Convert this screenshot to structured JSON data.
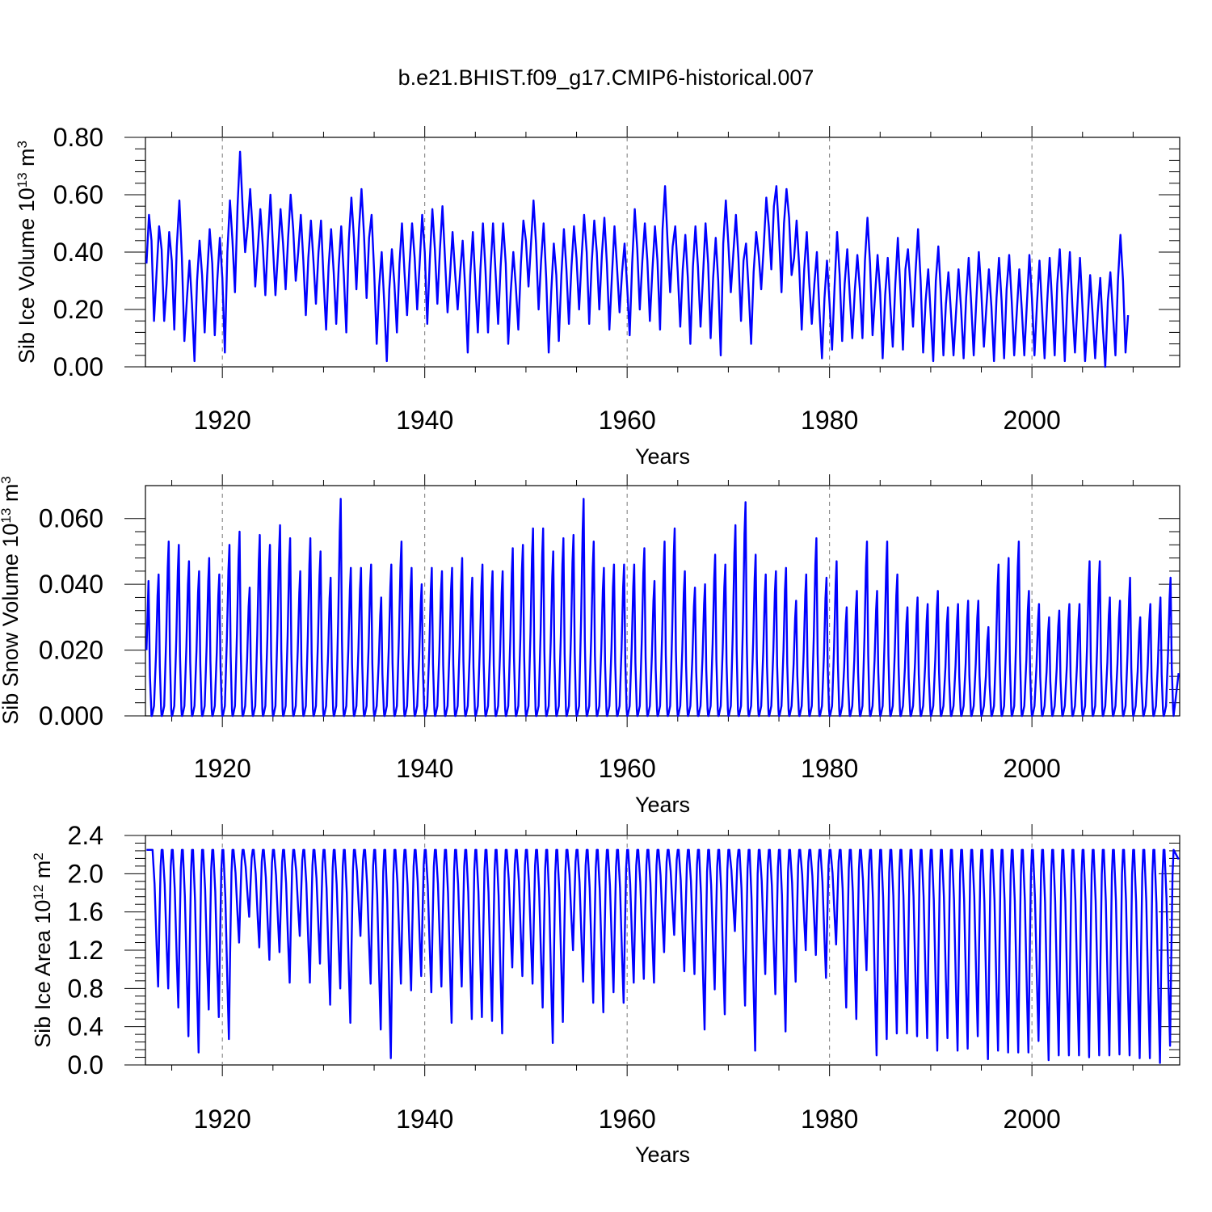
{
  "figure_title": "b.e21.BHIST.f09_g17.CMIP6-historical.007",
  "chart_data": [
    {
      "type": "line",
      "title": "",
      "xlabel": "Years",
      "ylabel": {
        "base": "Sib Ice Volume 10",
        "exp": "13",
        "unit": " m",
        "unit_exp": "3"
      },
      "xlim": [
        1912.4,
        2014.6
      ],
      "ylim": [
        0,
        0.8
      ],
      "x_ticks": [
        1920,
        1940,
        1960,
        1980,
        2000
      ],
      "x_tick_labels": [
        "1920",
        "1940",
        "1960",
        "1980",
        "2000"
      ],
      "y_ticks": [
        0,
        0.2,
        0.4,
        0.6,
        0.8
      ],
      "y_tick_labels": [
        "0.00",
        "0.20",
        "0.40",
        "0.60",
        "0.80"
      ],
      "grid": "vertical dashed at major x ticks",
      "series": [
        {
          "color": "#0000ff",
          "start_year": 1912.5,
          "step_years": 0.25,
          "values": [
            0.36,
            0.53,
            0.44,
            0.16,
            0.33,
            0.49,
            0.41,
            0.16,
            0.29,
            0.47,
            0.37,
            0.13,
            0.42,
            0.58,
            0.38,
            0.09,
            0.24,
            0.37,
            0.22,
            0.02,
            0.3,
            0.44,
            0.32,
            0.12,
            0.32,
            0.48,
            0.36,
            0.11,
            0.3,
            0.45,
            0.31,
            0.05,
            0.4,
            0.58,
            0.44,
            0.26,
            0.56,
            0.75,
            0.56,
            0.4,
            0.49,
            0.62,
            0.47,
            0.28,
            0.41,
            0.55,
            0.42,
            0.25,
            0.44,
            0.6,
            0.42,
            0.25,
            0.4,
            0.55,
            0.43,
            0.27,
            0.45,
            0.6,
            0.48,
            0.3,
            0.4,
            0.53,
            0.37,
            0.18,
            0.38,
            0.51,
            0.37,
            0.22,
            0.4,
            0.51,
            0.31,
            0.13,
            0.35,
            0.48,
            0.33,
            0.15,
            0.35,
            0.49,
            0.32,
            0.12,
            0.44,
            0.59,
            0.45,
            0.27,
            0.48,
            0.62,
            0.46,
            0.24,
            0.45,
            0.53,
            0.33,
            0.08,
            0.28,
            0.4,
            0.22,
            0.02,
            0.27,
            0.41,
            0.29,
            0.12,
            0.36,
            0.5,
            0.33,
            0.18,
            0.36,
            0.5,
            0.38,
            0.2,
            0.36,
            0.53,
            0.4,
            0.15,
            0.37,
            0.55,
            0.41,
            0.22,
            0.41,
            0.56,
            0.38,
            0.19,
            0.32,
            0.47,
            0.33,
            0.2,
            0.33,
            0.44,
            0.27,
            0.05,
            0.32,
            0.47,
            0.29,
            0.12,
            0.34,
            0.5,
            0.34,
            0.12,
            0.34,
            0.5,
            0.33,
            0.15,
            0.35,
            0.5,
            0.36,
            0.08,
            0.26,
            0.4,
            0.28,
            0.13,
            0.36,
            0.51,
            0.44,
            0.28,
            0.43,
            0.58,
            0.43,
            0.2,
            0.37,
            0.5,
            0.31,
            0.05,
            0.26,
            0.43,
            0.32,
            0.09,
            0.32,
            0.48,
            0.34,
            0.15,
            0.35,
            0.49,
            0.38,
            0.2,
            0.38,
            0.53,
            0.4,
            0.15,
            0.36,
            0.51,
            0.4,
            0.2,
            0.39,
            0.52,
            0.36,
            0.13,
            0.32,
            0.49,
            0.35,
            0.19,
            0.33,
            0.43,
            0.28,
            0.11,
            0.36,
            0.55,
            0.41,
            0.2,
            0.37,
            0.5,
            0.37,
            0.16,
            0.34,
            0.49,
            0.37,
            0.13,
            0.48,
            0.63,
            0.43,
            0.26,
            0.42,
            0.49,
            0.33,
            0.14,
            0.34,
            0.46,
            0.31,
            0.08,
            0.35,
            0.49,
            0.35,
            0.14,
            0.32,
            0.5,
            0.36,
            0.1,
            0.31,
            0.45,
            0.3,
            0.04,
            0.43,
            0.58,
            0.43,
            0.26,
            0.4,
            0.53,
            0.38,
            0.16,
            0.37,
            0.43,
            0.27,
            0.08,
            0.33,
            0.47,
            0.39,
            0.27,
            0.42,
            0.59,
            0.49,
            0.34,
            0.56,
            0.63,
            0.47,
            0.26,
            0.5,
            0.62,
            0.52,
            0.32,
            0.38,
            0.51,
            0.35,
            0.13,
            0.34,
            0.47,
            0.29,
            0.15,
            0.29,
            0.4,
            0.2,
            0.03,
            0.24,
            0.37,
            0.22,
            0.06,
            0.28,
            0.47,
            0.32,
            0.09,
            0.29,
            0.41,
            0.25,
            0.1,
            0.27,
            0.39,
            0.27,
            0.1,
            0.37,
            0.52,
            0.36,
            0.11,
            0.25,
            0.39,
            0.26,
            0.03,
            0.25,
            0.38,
            0.22,
            0.07,
            0.29,
            0.45,
            0.27,
            0.06,
            0.34,
            0.41,
            0.28,
            0.14,
            0.33,
            0.48,
            0.3,
            0.05,
            0.23,
            0.34,
            0.18,
            0.02,
            0.3,
            0.42,
            0.26,
            0.04,
            0.22,
            0.33,
            0.19,
            0.04,
            0.19,
            0.34,
            0.2,
            0.03,
            0.24,
            0.38,
            0.22,
            0.04,
            0.23,
            0.4,
            0.26,
            0.07,
            0.21,
            0.34,
            0.21,
            0.02,
            0.24,
            0.38,
            0.23,
            0.03,
            0.27,
            0.39,
            0.23,
            0.04,
            0.19,
            0.34,
            0.2,
            0.04,
            0.22,
            0.39,
            0.24,
            0.04,
            0.22,
            0.37,
            0.2,
            0.03,
            0.22,
            0.38,
            0.22,
            0.04,
            0.29,
            0.41,
            0.23,
            0.02,
            0.25,
            0.4,
            0.21,
            0.05,
            0.22,
            0.38,
            0.2,
            0.02,
            0.16,
            0.32,
            0.18,
            0.03,
            0.19,
            0.31,
            0.14,
            0.0,
            0.23,
            0.33,
            0.19,
            0.04,
            0.3,
            0.46,
            0.3,
            0.05,
            0.18
          ]
        }
      ]
    },
    {
      "type": "line",
      "title": "",
      "xlabel": "Years",
      "ylabel": {
        "base": "Sib Snow Volume 10",
        "exp": "13",
        "unit": " m",
        "unit_exp": "3"
      },
      "xlim": [
        1912.4,
        2014.6
      ],
      "ylim": [
        0,
        0.07
      ],
      "x_ticks": [
        1920,
        1940,
        1960,
        1980,
        2000
      ],
      "x_tick_labels": [
        "1920",
        "1940",
        "1960",
        "1980",
        "2000"
      ],
      "y_ticks": [
        0,
        0.02,
        0.04,
        0.06
      ],
      "y_tick_labels": [
        "0.000",
        "0.020",
        "0.040",
        "0.060"
      ],
      "grid": "vertical dashed at major x ticks",
      "series": [
        {
          "color": "#0000ff",
          "start_year": 1912.5,
          "annual_peak_years": [
            1912.7,
            1913.7,
            1914.7,
            1915.7,
            1916.7,
            1917.7,
            1918.7,
            1919.7,
            1920.7,
            1921.7,
            1922.7,
            1923.7,
            1924.7,
            1925.7,
            1926.7,
            1927.7,
            1928.7,
            1929.7,
            1930.7,
            1931.7,
            1932.7,
            1933.7,
            1934.7,
            1935.7,
            1936.7,
            1937.7,
            1938.7,
            1939.7,
            1940.7,
            1941.7,
            1942.7,
            1943.7,
            1944.7,
            1945.7,
            1946.7,
            1947.7,
            1948.7,
            1949.7,
            1950.7,
            1951.7,
            1952.7,
            1953.7,
            1954.7,
            1955.7,
            1956.7,
            1957.7,
            1958.7,
            1959.7,
            1960.7,
            1961.7,
            1962.7,
            1963.7,
            1964.7,
            1965.7,
            1966.7,
            1967.7,
            1968.7,
            1969.7,
            1970.7,
            1971.7,
            1972.7,
            1973.7,
            1974.7,
            1975.7,
            1976.7,
            1977.7,
            1978.7,
            1979.7,
            1980.7,
            1981.7,
            1982.7,
            1983.7,
            1984.7,
            1985.7,
            1986.7,
            1987.7,
            1988.7,
            1989.7,
            1990.7,
            1991.7,
            1992.7,
            1993.7,
            1994.7,
            1995.7,
            1996.7,
            1997.7,
            1998.7,
            1999.7,
            2000.7,
            2001.7,
            2002.7,
            2003.7,
            2004.7,
            2005.7,
            2006.7,
            2007.7,
            2008.7,
            2009.7,
            2010.7,
            2011.7,
            2012.7,
            2013.7
          ],
          "annual_peaks": [
            0.041,
            0.043,
            0.053,
            0.052,
            0.047,
            0.044,
            0.048,
            0.043,
            0.052,
            0.056,
            0.039,
            0.055,
            0.052,
            0.058,
            0.054,
            0.044,
            0.054,
            0.05,
            0.042,
            0.066,
            0.045,
            0.045,
            0.046,
            0.036,
            0.046,
            0.053,
            0.045,
            0.04,
            0.045,
            0.044,
            0.045,
            0.048,
            0.042,
            0.046,
            0.044,
            0.044,
            0.051,
            0.052,
            0.057,
            0.057,
            0.05,
            0.054,
            0.055,
            0.066,
            0.053,
            0.045,
            0.046,
            0.046,
            0.046,
            0.051,
            0.041,
            0.053,
            0.057,
            0.044,
            0.039,
            0.04,
            0.049,
            0.046,
            0.058,
            0.065,
            0.049,
            0.043,
            0.044,
            0.045,
            0.035,
            0.043,
            0.054,
            0.042,
            0.047,
            0.033,
            0.038,
            0.053,
            0.038,
            0.053,
            0.043,
            0.033,
            0.036,
            0.034,
            0.038,
            0.033,
            0.034,
            0.035,
            0.035,
            0.027,
            0.046,
            0.048,
            0.053,
            0.038,
            0.034,
            0.03,
            0.032,
            0.034,
            0.034,
            0.047,
            0.047,
            0.036,
            0.035,
            0.042,
            0.03,
            0.034,
            0.036,
            0.042
          ],
          "end_value": 0.013
        }
      ]
    },
    {
      "type": "line",
      "title": "",
      "xlabel": "Years",
      "ylabel": {
        "base": "Sib Ice Area 10",
        "exp": "12",
        "unit": " m",
        "unit_exp": "2"
      },
      "xlim": [
        1912.4,
        2014.6
      ],
      "ylim": [
        0,
        2.4
      ],
      "x_ticks": [
        1920,
        1940,
        1960,
        1980,
        2000
      ],
      "x_tick_labels": [
        "1920",
        "1940",
        "1960",
        "1980",
        "2000"
      ],
      "y_ticks": [
        0,
        0.4,
        0.8,
        1.2,
        1.6,
        2.0,
        2.4
      ],
      "y_tick_labels": [
        "0.0",
        "0.4",
        "0.8",
        "1.2",
        "1.6",
        "2.0",
        "2.4"
      ],
      "grid": "vertical dashed at major x ticks",
      "series": [
        {
          "color": "#0000ff",
          "plateau": 2.25,
          "annual_min_years": [
            1913.65,
            1914.65,
            1915.65,
            1916.65,
            1917.65,
            1918.65,
            1919.65,
            1920.65,
            1921.65,
            1922.65,
            1923.65,
            1924.65,
            1925.65,
            1926.65,
            1927.65,
            1928.65,
            1929.65,
            1930.65,
            1931.65,
            1932.65,
            1933.65,
            1934.65,
            1935.65,
            1936.65,
            1937.65,
            1938.65,
            1939.65,
            1940.65,
            1941.65,
            1942.65,
            1943.65,
            1944.65,
            1945.65,
            1946.65,
            1947.65,
            1948.65,
            1949.65,
            1950.65,
            1951.65,
            1952.65,
            1953.65,
            1954.65,
            1955.65,
            1956.65,
            1957.65,
            1958.65,
            1959.65,
            1960.65,
            1961.65,
            1962.65,
            1963.65,
            1964.65,
            1965.65,
            1966.65,
            1967.65,
            1968.65,
            1969.65,
            1970.65,
            1971.65,
            1972.65,
            1973.65,
            1974.65,
            1975.65,
            1976.65,
            1977.65,
            1978.65,
            1979.65,
            1980.65,
            1981.65,
            1982.65,
            1983.65,
            1984.65,
            1985.65,
            1986.65,
            1987.65,
            1988.65,
            1989.65,
            1990.65,
            1991.65,
            1992.65,
            1993.65,
            1994.65,
            1995.65,
            1996.65,
            1997.65,
            1998.65,
            1999.65,
            2000.65,
            2001.65,
            2002.65,
            2003.65,
            2004.65,
            2005.65,
            2006.65,
            2007.65,
            2008.65,
            2009.65,
            2010.65,
            2011.65,
            2012.65,
            2013.65
          ],
          "annual_minima": [
            0.82,
            0.8,
            0.6,
            0.3,
            0.13,
            0.58,
            0.5,
            0.27,
            1.28,
            1.55,
            1.23,
            1.1,
            1.18,
            0.86,
            1.35,
            0.86,
            1.06,
            0.63,
            0.8,
            0.44,
            1.35,
            0.85,
            0.37,
            0.07,
            0.85,
            0.78,
            0.93,
            0.76,
            0.82,
            0.44,
            0.82,
            0.48,
            0.5,
            0.46,
            0.33,
            1.02,
            0.93,
            0.85,
            0.6,
            0.23,
            0.45,
            1.2,
            0.87,
            0.65,
            0.55,
            0.76,
            0.65,
            0.86,
            0.9,
            0.86,
            1.18,
            1.36,
            0.98,
            0.95,
            0.37,
            0.79,
            0.53,
            1.4,
            0.62,
            0.15,
            0.95,
            0.74,
            0.35,
            0.87,
            1.2,
            1.15,
            0.91,
            1.26,
            0.6,
            0.48,
            0.99,
            0.1,
            0.27,
            0.33,
            0.33,
            0.3,
            0.28,
            0.15,
            0.28,
            0.15,
            0.17,
            0.3,
            0.06,
            0.15,
            0.13,
            0.13,
            0.13,
            0.25,
            0.05,
            0.1,
            0.1,
            0.1,
            0.08,
            0.1,
            0.1,
            0.11,
            0.1,
            0.07,
            0.07,
            0.02,
            0.2
          ],
          "end_value": 2.15
        }
      ]
    }
  ]
}
